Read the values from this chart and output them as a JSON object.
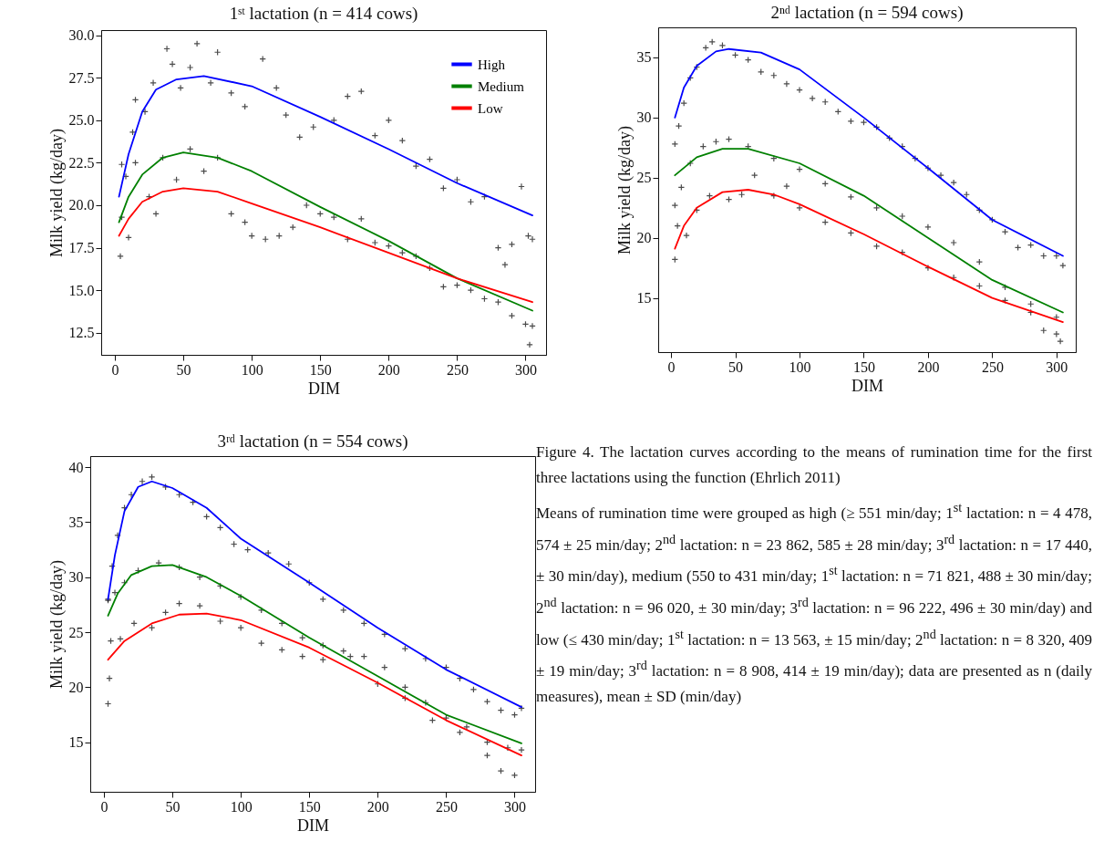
{
  "chart_data": [
    {
      "type": "line",
      "title": "1ˢᵗ lactation (n = 414 cows)",
      "xlabel": "DIM",
      "ylabel": "Milk yield (kg/day)",
      "xlim": [
        -10,
        315
      ],
      "ylim": [
        11.2,
        30.3
      ],
      "xticks": [
        0,
        50,
        100,
        150,
        200,
        250,
        300
      ],
      "yticks": [
        {
          "value": 12.5,
          "label": "12.5"
        },
        {
          "value": 15,
          "label": "15.0"
        },
        {
          "value": 17.5,
          "label": "17.5"
        },
        {
          "value": 20,
          "label": "20.0"
        },
        {
          "value": 22.5,
          "label": "22.5"
        },
        {
          "value": 25,
          "label": "25.0"
        },
        {
          "value": 27.5,
          "label": "27.5"
        },
        {
          "value": 30,
          "label": "30.0"
        }
      ],
      "grid": false,
      "legend": "top right",
      "line_style": "solid",
      "series": [
        {
          "type": "scatter",
          "marker": "cross",
          "color": "#000000",
          "x": [
            5,
            8,
            13,
            15,
            22,
            28,
            38,
            42,
            48,
            55,
            60,
            70,
            75,
            85,
            95,
            108,
            118,
            125,
            135,
            145,
            160,
            170,
            180,
            190,
            200,
            210,
            220,
            230,
            240,
            250,
            260,
            270,
            280,
            285,
            290,
            297,
            302,
            305,
            4,
            5,
            10,
            15,
            25,
            30,
            35,
            45,
            55,
            65,
            75,
            85,
            95,
            100,
            110,
            120,
            130,
            140,
            150,
            160,
            170,
            180,
            190,
            200,
            210,
            220,
            230,
            240,
            250,
            260,
            270,
            280,
            290,
            300,
            303,
            305
          ],
          "values": [
            22.4,
            21.7,
            24.3,
            26.2,
            25.5,
            27.2,
            29.2,
            28.3,
            26.9,
            28.1,
            29.5,
            27.2,
            29.0,
            26.6,
            25.8,
            28.6,
            26.9,
            25.3,
            24.0,
            24.6,
            25.0,
            26.4,
            26.7,
            24.1,
            25.0,
            23.8,
            22.3,
            22.7,
            21.0,
            21.5,
            20.2,
            20.5,
            17.5,
            16.5,
            17.7,
            21.1,
            18.2,
            18.0,
            17.0,
            19.3,
            18.1,
            22.5,
            20.5,
            19.5,
            22.8,
            21.5,
            23.3,
            22.0,
            22.8,
            19.5,
            19.0,
            18.2,
            18.0,
            18.2,
            18.7,
            20.0,
            19.5,
            19.3,
            18.0,
            19.2,
            17.8,
            17.6,
            17.2,
            17.0,
            16.3,
            15.2,
            15.3,
            15.0,
            14.5,
            14.3,
            13.5,
            13.0,
            11.8,
            12.9
          ]
        },
        {
          "name": "High",
          "color": "#0000ff",
          "x": [
            3,
            10,
            20,
            30,
            45,
            65,
            100,
            150,
            200,
            250,
            305
          ],
          "values": [
            20.5,
            23,
            25.5,
            26.8,
            27.4,
            27.6,
            27.0,
            25.2,
            23.3,
            21.3,
            19.4
          ]
        },
        {
          "name": "Medium",
          "color": "#008000",
          "x": [
            3,
            10,
            20,
            35,
            50,
            75,
            100,
            150,
            200,
            250,
            305
          ],
          "values": [
            19,
            20.5,
            21.8,
            22.8,
            23.1,
            22.8,
            22.0,
            19.9,
            17.9,
            15.7,
            13.8
          ]
        },
        {
          "name": "Low",
          "color": "#ff0000",
          "x": [
            3,
            10,
            20,
            35,
            50,
            75,
            100,
            150,
            200,
            250,
            305
          ],
          "values": [
            18.2,
            19.2,
            20.2,
            20.8,
            21.0,
            20.8,
            20.1,
            18.7,
            17.2,
            15.7,
            14.3
          ]
        }
      ]
    },
    {
      "type": "line",
      "title": "2ⁿᵈ lactation (n = 594 cows)",
      "xlabel": "DIM",
      "ylabel": "Milk yield (kg/day)",
      "xlim": [
        -10,
        315
      ],
      "ylim": [
        10.5,
        37.5
      ],
      "xticks": [
        0,
        50,
        100,
        150,
        200,
        250,
        300
      ],
      "yticks": [
        15,
        20,
        25,
        30,
        35
      ],
      "grid": false,
      "line_style": "solid",
      "series": [
        {
          "type": "scatter",
          "marker": "cross",
          "color": "#000000",
          "x": [
            3,
            6,
            10,
            15,
            20,
            27,
            32,
            40,
            50,
            60,
            70,
            80,
            90,
            100,
            110,
            120,
            130,
            140,
            150,
            160,
            170,
            180,
            190,
            200,
            210,
            220,
            230,
            240,
            250,
            260,
            270,
            280,
            290,
            300,
            305,
            3,
            8,
            15,
            25,
            35,
            45,
            60,
            80,
            100,
            120,
            140,
            160,
            180,
            200,
            220,
            240,
            260,
            280,
            300,
            3,
            5,
            12,
            20,
            30,
            45,
            55,
            65,
            80,
            90,
            100,
            120,
            140,
            160,
            180,
            200,
            220,
            240,
            260,
            280,
            290,
            300,
            303
          ],
          "values": [
            27.8,
            29.3,
            31.2,
            33.3,
            34.2,
            35.8,
            36.3,
            36.0,
            35.2,
            34.8,
            33.8,
            33.5,
            32.8,
            32.3,
            31.6,
            31.3,
            30.5,
            29.7,
            29.6,
            29.2,
            28.3,
            27.6,
            26.6,
            25.8,
            25.2,
            24.6,
            23.6,
            22.3,
            21.5,
            20.5,
            19.2,
            19.4,
            18.5,
            18.5,
            17.7,
            22.7,
            24.2,
            26.2,
            27.6,
            28.0,
            28.2,
            27.6,
            26.6,
            25.7,
            24.5,
            23.4,
            22.5,
            21.8,
            20.9,
            19.6,
            18.0,
            15.9,
            14.5,
            13.4,
            18.2,
            21.0,
            20.2,
            22.3,
            23.5,
            23.2,
            23.6,
            25.2,
            23.5,
            24.3,
            22.5,
            21.3,
            20.4,
            19.3,
            18.8,
            17.5,
            16.7,
            16.0,
            14.8,
            13.8,
            12.3,
            12.0,
            11.4
          ]
        },
        {
          "color": "#0000ff",
          "x": [
            3,
            10,
            20,
            35,
            45,
            70,
            100,
            150,
            200,
            250,
            305
          ],
          "values": [
            30,
            32.5,
            34.3,
            35.5,
            35.7,
            35.4,
            34,
            30,
            25.8,
            21.5,
            18.5
          ]
        },
        {
          "color": "#008000",
          "x": [
            3,
            20,
            40,
            60,
            100,
            150,
            200,
            250,
            305
          ],
          "values": [
            25.2,
            26.7,
            27.4,
            27.4,
            26.2,
            23.5,
            20,
            16.5,
            13.8
          ]
        },
        {
          "color": "#ff0000",
          "x": [
            3,
            10,
            20,
            40,
            60,
            80,
            100,
            150,
            200,
            250,
            305
          ],
          "values": [
            19.1,
            21,
            22.5,
            23.8,
            24,
            23.6,
            22.8,
            20.3,
            17.6,
            15,
            13
          ]
        }
      ]
    },
    {
      "type": "line",
      "title": "3ʳᵈ lactation (n = 554 cows)",
      "xlabel": "DIM",
      "ylabel": "Milk yield (kg/day)",
      "xlim": [
        -10,
        315
      ],
      "ylim": [
        10.5,
        41
      ],
      "xticks": [
        0,
        50,
        100,
        150,
        200,
        250,
        300
      ],
      "yticks": [
        15,
        20,
        25,
        30,
        35,
        40
      ],
      "grid": false,
      "line_style": "solid",
      "annotations": [
        "Figure 4. The lactation curves according to the means of rumination time for the first three lactations using the function (Ehrlich 2011)",
        "Means of rumination time were grouped as high (≥ 551 min/day; 1$^{st}$ lactation: n = 4 478, 574 ± 25 min/day; 2$^{nd}$ lactation: n = 23 862, 585 ± 28 min/day; 3$^{rd}$ lactation: n = 17 440, ± 30 min/day), medium (550 to 431 min/day; 1$^{st}$ lactation: n = 71 821, 488 ± 30 min/day; 2$^{nd}$ lactation: n = 96 020, ± 30 min/day; 3$^{rd}$ lactation: n = 96 222, 496 ± 30 min/day) and low (≤ 430 min/day; 1$^{st}$ lactation: n = 13 563, ± 15 min/day; 2$^{nd}$ lactation: n = 8 320, 409 ± 19 min/day; 3$^{rd}$ lactation: n = 8 908, 414 ± 19 min/day); data are presented as n (daily measures), mean ± SD (min/day)"
      ],
      "series": [
        {
          "type": "scatter",
          "marker": "cross",
          "color": "#000000",
          "x": [
            3,
            6,
            10,
            15,
            20,
            28,
            35,
            45,
            55,
            65,
            75,
            85,
            95,
            105,
            120,
            135,
            150,
            160,
            175,
            190,
            205,
            220,
            235,
            250,
            260,
            270,
            280,
            290,
            300,
            305,
            3,
            8,
            15,
            25,
            40,
            55,
            70,
            85,
            100,
            115,
            130,
            145,
            160,
            175,
            190,
            205,
            220,
            235,
            250,
            265,
            280,
            295,
            305,
            3,
            4,
            5,
            12,
            22,
            35,
            45,
            55,
            70,
            85,
            100,
            115,
            130,
            145,
            160,
            180,
            200,
            220,
            240,
            260,
            280,
            290,
            300
          ],
          "values": [
            28,
            31,
            33.8,
            36.3,
            37.5,
            38.7,
            39.1,
            38.2,
            37.5,
            36.8,
            35.5,
            34.5,
            33.0,
            32.5,
            32.2,
            31.2,
            29.5,
            28.0,
            27.0,
            25.8,
            24.8,
            23.5,
            22.6,
            21.8,
            20.8,
            19.8,
            18.7,
            17.9,
            17.5,
            18.1,
            27.9,
            28.6,
            29.5,
            30.6,
            31.3,
            30.9,
            30.0,
            29.2,
            28.2,
            27.0,
            25.8,
            24.5,
            23.8,
            23.3,
            22.8,
            21.8,
            20.0,
            18.6,
            17.2,
            16.4,
            15.0,
            14.5,
            14.3,
            18.5,
            20.8,
            24.2,
            24.4,
            25.8,
            25.4,
            26.8,
            27.6,
            27.4,
            26.0,
            25.4,
            24.0,
            23.4,
            22.8,
            22.5,
            22.8,
            20.3,
            19.0,
            17.0,
            15.9,
            13.8,
            12.4,
            12.0
          ]
        },
        {
          "color": "#0000ff",
          "x": [
            3,
            8,
            15,
            25,
            35,
            50,
            75,
            100,
            150,
            200,
            250,
            305
          ],
          "values": [
            28,
            32,
            36,
            38.2,
            38.7,
            38.1,
            36.3,
            33.5,
            29.5,
            25.4,
            21.6,
            18.2
          ]
        },
        {
          "color": "#008000",
          "x": [
            3,
            10,
            20,
            35,
            50,
            75,
            100,
            150,
            200,
            250,
            305
          ],
          "values": [
            26.5,
            28.5,
            30.2,
            31.0,
            31.1,
            30.0,
            28.3,
            24.5,
            21.0,
            17.5,
            14.9
          ]
        },
        {
          "color": "#ff0000",
          "x": [
            3,
            15,
            35,
            55,
            75,
            100,
            150,
            200,
            250,
            305
          ],
          "values": [
            22.5,
            24.2,
            25.8,
            26.6,
            26.7,
            26.1,
            23.6,
            20.4,
            17.0,
            13.8
          ]
        }
      ]
    }
  ]
}
